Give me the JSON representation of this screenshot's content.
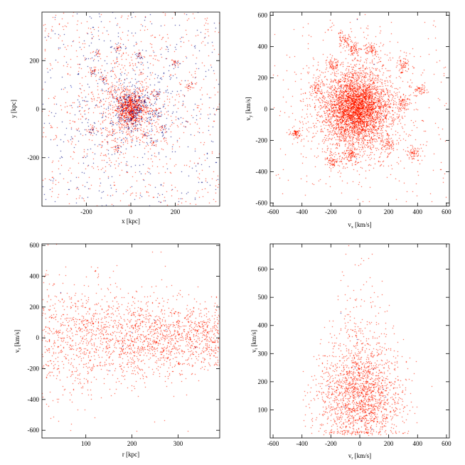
{
  "chart_data": [
    {
      "type": "heatmap",
      "panel": "x-y",
      "xlabel": "x [kpc]",
      "ylabel": "y [kpc]",
      "xlim": [
        -400,
        400
      ],
      "ylim": [
        -400,
        400
      ],
      "xticks": [
        -200,
        0,
        200
      ],
      "yticks": [
        -200,
        0,
        200
      ],
      "density_peak": [
        0,
        0
      ],
      "clumps": [
        [
          -120,
          120
        ],
        [
          -90,
          60
        ],
        [
          120,
          60
        ],
        [
          -170,
          150
        ],
        [
          110,
          -20
        ],
        [
          70,
          -110
        ],
        [
          100,
          -140
        ],
        [
          150,
          -80
        ],
        [
          260,
          100
        ],
        [
          200,
          190
        ],
        [
          -60,
          -160
        ],
        [
          -150,
          230
        ],
        [
          -60,
          250
        ],
        [
          40,
          220
        ],
        [
          -180,
          -90
        ]
      ]
    },
    {
      "type": "heatmap",
      "panel": "vx-vy",
      "xlabel": "v_x [km/s]",
      "ylabel": "v_y [km/s]",
      "xlim": [
        -620,
        620
      ],
      "ylim": [
        -620,
        620
      ],
      "xticks": [
        -600,
        -400,
        -200,
        0,
        200,
        400,
        600
      ],
      "yticks": [
        -600,
        -400,
        -200,
        0,
        200,
        400,
        600
      ],
      "density_peak": [
        -20,
        0
      ],
      "clumps": [
        [
          -440,
          -160
        ],
        [
          -300,
          140
        ],
        [
          -180,
          280
        ],
        [
          -40,
          380
        ],
        [
          80,
          380
        ],
        [
          300,
          280
        ],
        [
          420,
          120
        ],
        [
          -110,
          450
        ],
        [
          370,
          -280
        ],
        [
          -190,
          -330
        ],
        [
          -60,
          -290
        ],
        [
          200,
          -230
        ],
        [
          300,
          40
        ]
      ]
    },
    {
      "type": "heatmap",
      "panel": "r-vr",
      "xlabel": "r [kpc]",
      "ylabel": "v_r [km/s]",
      "xlim": [
        5,
        390
      ],
      "ylim": [
        -650,
        610
      ],
      "xticks": [
        100,
        200,
        300
      ],
      "yticks": [
        -600,
        -400,
        -200,
        0,
        200,
        400,
        600
      ],
      "density_peak": [
        60,
        20
      ]
    },
    {
      "type": "heatmap",
      "panel": "vr-vt",
      "xlabel": "v_r [km/s]",
      "ylabel": "v_t [km/s]",
      "xlim": [
        -620,
        620
      ],
      "ylim": [
        0,
        690
      ],
      "xticks": [
        -600,
        -400,
        -200,
        0,
        200,
        400,
        600
      ],
      "yticks": [
        100,
        200,
        300,
        400,
        500,
        600
      ],
      "density_peak": [
        0,
        150
      ]
    }
  ],
  "colormap": [
    "#000000",
    "#00006e",
    "#0028ff",
    "#00c8ff",
    "#14ff96",
    "#c8ff00",
    "#ffaa00",
    "#ff1e00"
  ]
}
